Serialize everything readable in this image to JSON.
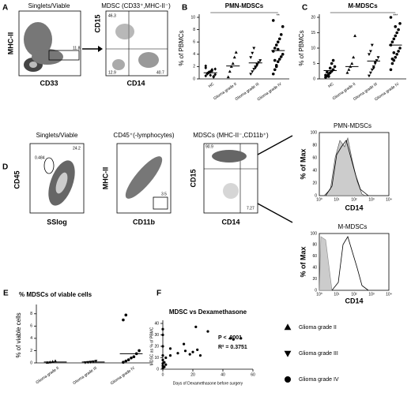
{
  "chart_data": [
    {
      "type": "strip",
      "panel": "B",
      "title": "PMN-MDSCs",
      "y_label": "% of PBMCs",
      "categories": [
        "HC",
        "Glioma grade II",
        "Glioma grade III",
        "Glioma grade IV"
      ],
      "markers": [
        "diamond",
        "triangle",
        "triangle-down",
        "circle"
      ],
      "color": "#000000",
      "values": [
        [
          0.5,
          0.8,
          1,
          1.2,
          1.5,
          0.3,
          0.7,
          1.8,
          0.9,
          1.1,
          0.6,
          1.3,
          0.4,
          1.6,
          2.1
        ],
        [
          0.3,
          1.2,
          2.0,
          2.5,
          3.5,
          4.3
        ],
        [
          0.8,
          1.2,
          1.6,
          2.0,
          2.4,
          2.7,
          3.0,
          3.5,
          4.2,
          5.0,
          1.8,
          2.2
        ],
        [
          0.8,
          1.5,
          2.2,
          2.8,
          3.2,
          3.6,
          4.0,
          4.5,
          5.0,
          5.5,
          6.0,
          6.5,
          7.2,
          8.5,
          9.5,
          3.0,
          2.0,
          4.8
        ]
      ],
      "means": [
        1.0,
        2.1,
        2.6,
        4.6
      ],
      "annotation": "**",
      "ylim": [
        0,
        10
      ],
      "yticks": [
        0,
        2,
        4,
        6,
        8,
        10
      ]
    },
    {
      "type": "strip",
      "panel": "C",
      "title": "M-MDSCs",
      "y_label": "% of PBMCs",
      "categories": [
        "HC",
        "Glioma grade II",
        "Glioma grade III",
        "Glioma grade IV"
      ],
      "markers": [
        "circle",
        "triangle",
        "triangle-down",
        "circle"
      ],
      "color": "#000000",
      "values": [
        [
          0.5,
          1,
          1.5,
          2,
          2.5,
          3,
          4,
          1.2,
          2.2,
          0.8,
          3.5,
          5,
          6
        ],
        [
          2,
          3,
          4,
          5,
          7,
          14
        ],
        [
          1,
          2,
          3,
          4,
          5,
          6,
          7,
          8,
          9,
          11,
          3.5,
          5.5
        ],
        [
          3,
          5,
          6,
          7,
          8,
          9,
          10,
          11,
          12,
          13,
          14,
          15,
          16,
          18,
          20,
          6.5,
          8.5,
          17
        ]
      ],
      "means": [
        2.7,
        4,
        5.8,
        11
      ],
      "annotation": "***",
      "ylim": [
        0,
        20
      ],
      "yticks": [
        0,
        5,
        10,
        15,
        20
      ]
    },
    {
      "type": "strip",
      "panel": "E",
      "title": "% MDSCs of viable cells",
      "y_label": "% of viable cells",
      "categories": [
        "Glioma grade II",
        "Glioma grade III",
        "Glioma grade IV"
      ],
      "markers": [
        "triangle",
        "triangle-down",
        "circle"
      ],
      "color": "#000000",
      "values": [
        [
          0.05,
          0.1,
          0.2,
          0.3
        ],
        [
          0.05,
          0.1,
          0.15,
          0.2,
          0.3
        ],
        [
          0.1,
          0.3,
          0.5,
          0.8,
          1,
          1.5,
          2,
          7,
          7.8
        ]
      ],
      "means": [
        0.15,
        0.15,
        1.5
      ],
      "ylim": [
        0,
        9
      ],
      "yticks": [
        0,
        2,
        4,
        6,
        8
      ]
    },
    {
      "type": "scatter",
      "panel": "F",
      "title": "MDSC vs Dexamethasone",
      "x_label": "Days of Dexamethasone before surgery",
      "y_label": "MDSC as % of PBMC",
      "annotations": [
        "P < .0001",
        "R² = 0.3751"
      ],
      "color": "#000000",
      "x": [
        0,
        0,
        0,
        0,
        0,
        0,
        0,
        1,
        1,
        2,
        2,
        5,
        5,
        10,
        14,
        15,
        18,
        20,
        22,
        23,
        25,
        30,
        45,
        47,
        52,
        0
      ],
      "y": [
        1,
        3,
        5,
        8,
        12,
        20,
        30,
        2,
        6,
        10,
        4,
        18,
        12,
        14,
        22,
        16,
        13,
        15,
        37,
        17,
        12,
        33,
        27,
        26,
        27,
        35
      ],
      "xlim": [
        0,
        60
      ],
      "xticks": [
        0,
        20,
        40,
        60
      ],
      "ylim": [
        0,
        40
      ],
      "yticks": [
        0,
        10,
        20,
        30,
        40
      ]
    }
  ],
  "flow": {
    "panel_a": {
      "letter": "A",
      "title": "Singlets/Viable",
      "y_label": "MHC-II",
      "x_label": "CD33",
      "gate": "11.8",
      "sub_title": "MDSC (CD33⁺,MHC-II⁻)",
      "sub_y_label": "CD15",
      "sub_x_label": "CD14",
      "quadrants": [
        "46.3",
        "12.9",
        "40.7"
      ]
    },
    "panel_d": {
      "letter": "D",
      "plots": [
        {
          "title": "Singlets/Viable",
          "y_label": "CD45",
          "x_label": "SSlog",
          "gates": [
            "0.484",
            "24.2"
          ]
        },
        {
          "title": "CD45⁺(-lymphocytes)",
          "y_label": "MHC-II",
          "x_label": "CD11b",
          "gates": [
            "3.5"
          ]
        },
        {
          "title": "MDSCs (MHC-II⁻,CD11b⁺)",
          "y_label": "CD15",
          "x_label": "CD14",
          "gates": [
            "90.9",
            "7.27"
          ]
        }
      ],
      "histograms": [
        {
          "title": "PMN-MDSCs",
          "y_label": "% of Max",
          "x_label": "CD14"
        },
        {
          "title": "M-MDSCs",
          "y_label": "% of Max",
          "x_label": "CD14"
        }
      ],
      "histogram_yticks": [
        "0",
        "20",
        "40",
        "60",
        "80",
        "100"
      ],
      "log_ticks": [
        "10⁰",
        "10¹",
        "10²",
        "10³",
        "10⁴"
      ]
    }
  },
  "legend": [
    {
      "label": "Glioma grade II",
      "marker": "triangle"
    },
    {
      "label": "Glioma grade III",
      "marker": "triangle-down"
    },
    {
      "label": "Glioma grade IV",
      "marker": "circle"
    }
  ]
}
